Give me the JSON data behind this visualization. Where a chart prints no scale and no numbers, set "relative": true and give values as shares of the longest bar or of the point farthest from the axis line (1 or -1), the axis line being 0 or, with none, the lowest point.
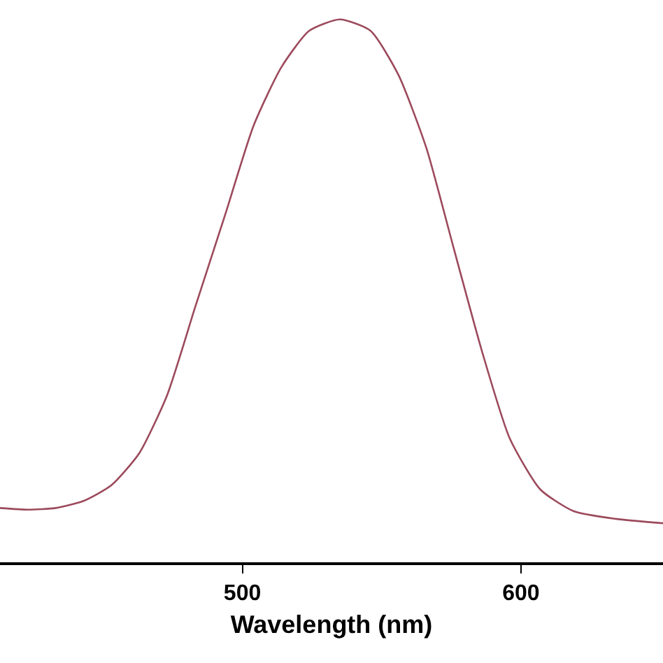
{
  "chart_data": {
    "type": "line",
    "xlabel": "Wavelength (nm)",
    "relative": true,
    "xlim": [
      413,
      651
    ],
    "xticks": [
      500,
      600
    ],
    "marker": "none",
    "line_style": "solid",
    "x": [
      413,
      423,
      433,
      443,
      453,
      463,
      473,
      483,
      494,
      504,
      514,
      524,
      535,
      546,
      556,
      566,
      576,
      586,
      596,
      607,
      619,
      634,
      651
    ],
    "series": [
      {
        "color": "#9c4a5c",
        "values": [
          0.1,
          0.097,
          0.1,
          0.113,
          0.142,
          0.201,
          0.308,
          0.469,
          0.643,
          0.804,
          0.912,
          0.979,
          1,
          0.979,
          0.898,
          0.764,
          0.576,
          0.389,
          0.228,
          0.134,
          0.094,
          0.08,
          0.072
        ]
      }
    ]
  }
}
